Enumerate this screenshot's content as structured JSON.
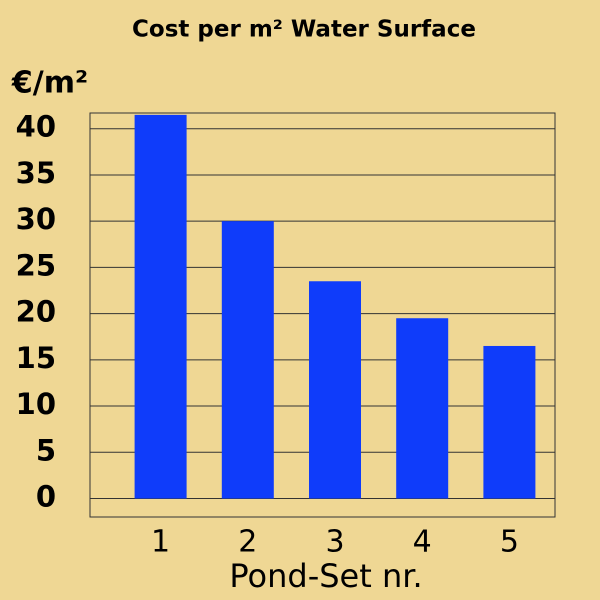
{
  "chart_data": {
    "type": "bar",
    "title": "Cost per m² Water Surface",
    "y_label": "€/m²",
    "x_label": "Pond-Set nr.",
    "categories": [
      "1",
      "2",
      "3",
      "4",
      "5"
    ],
    "values": [
      41.5,
      30,
      23.5,
      19.5,
      16.5
    ],
    "color": "#0f3cfa",
    "ylim": [
      -2,
      41.7
    ],
    "yticks": [
      0,
      5,
      10,
      15,
      20,
      25,
      30,
      35,
      40
    ],
    "grid": true
  }
}
